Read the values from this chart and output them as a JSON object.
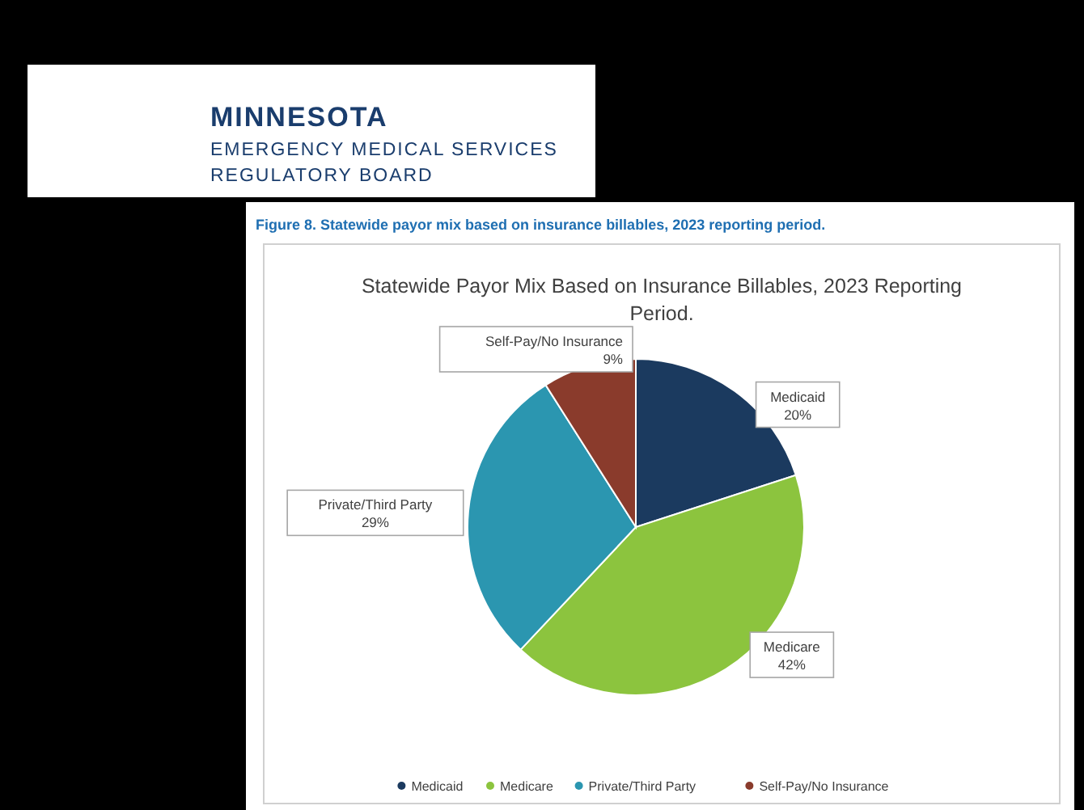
{
  "chart_data": {
    "type": "pie",
    "title": "Statewide Payor Mix Based on Insurance Billables, 2023 Reporting Period.",
    "annotations": [
      "MINNESOTA",
      "EMERGENCY MEDICAL SERVICES",
      "REGULATORY BOARD",
      "Figure 8. Statewide payor mix based on insurance billables, 2023 reporting period."
    ],
    "categories": [
      "Medicaid",
      "Medicare",
      "Private/Third Party",
      "Self-Pay/No Insurance"
    ],
    "values": [
      20,
      42,
      29,
      9
    ],
    "value_labels": [
      "20%",
      "42%",
      "29%",
      "9%"
    ],
    "colors": [
      "#1b3a5f",
      "#8cc43e",
      "#2b96b0",
      "#8a3b2c"
    ],
    "legend": "bottom"
  }
}
